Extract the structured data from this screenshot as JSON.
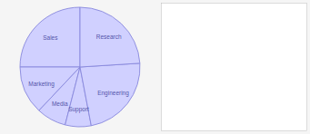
{
  "chart_data": {
    "type": "pie",
    "categories": [
      "Sales",
      "Marketing",
      "Media",
      "Support",
      "Engineering",
      "Research"
    ],
    "values": [
      25,
      13,
      8,
      7,
      23,
      24
    ],
    "color": "#d0d0ff"
  }
}
